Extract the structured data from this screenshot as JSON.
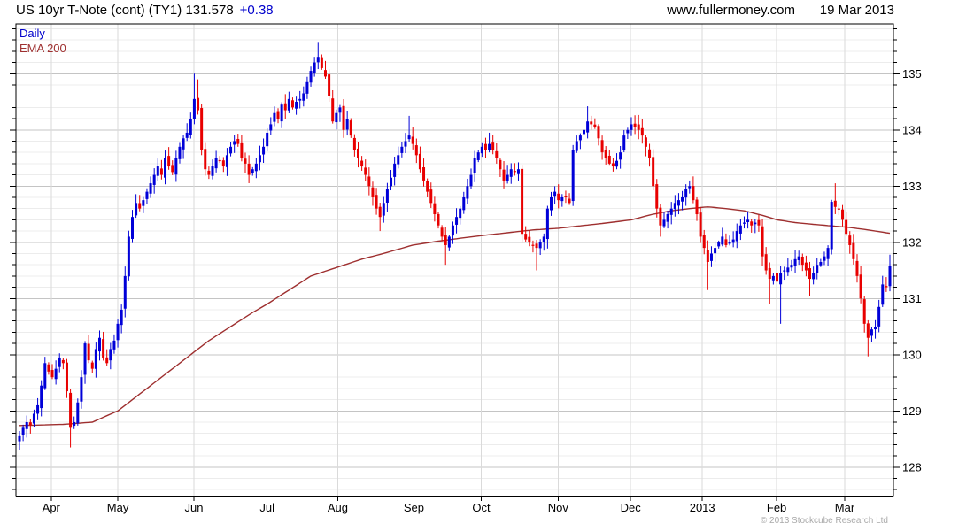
{
  "header": {
    "title": "US 10yr T-Note (cont) (TY1) 131.578",
    "change": "+0.38",
    "watermark": "www.fullermoney.com",
    "date": "19 Mar 2013"
  },
  "legend": {
    "timeframe": {
      "label": "Daily",
      "color": "#0000cc"
    },
    "overlay": {
      "label": "EMA 200",
      "color": "#9e2f2f"
    }
  },
  "footer": {
    "copyright": "© 2013 Stockcube Research Ltd"
  },
  "chart_data": {
    "type": "candlestick",
    "title": "US 10yr T-Note (cont) (TY1)",
    "last_price": 131.578,
    "change": 0.38,
    "timeframe": "Daily",
    "overlay": "EMA 200",
    "ylim": [
      127.477,
      135.886
    ],
    "y_ticks": [
      128,
      129,
      130,
      131,
      132,
      133,
      134,
      135
    ],
    "y_minor_step": 0.2,
    "grid": true,
    "legend_position": "top-left",
    "months": [
      {
        "label": "Apr",
        "day": 8.7
      },
      {
        "label": "May",
        "day": 27.0
      },
      {
        "label": "Jun",
        "day": 47.9
      },
      {
        "label": "Jul",
        "day": 68.0
      },
      {
        "label": "Aug",
        "day": 87.4
      },
      {
        "label": "Sep",
        "day": 108.3
      },
      {
        "label": "Oct",
        "day": 126.8
      },
      {
        "label": "Nov",
        "day": 147.9
      },
      {
        "label": "Dec",
        "day": 167.8
      },
      {
        "label": "2013",
        "day": 187.5
      },
      {
        "label": "Feb",
        "day": 207.9
      },
      {
        "label": "Mar",
        "day": 226.6
      }
    ],
    "closes": [
      128.55,
      128.7,
      128.8,
      128.75,
      128.95,
      129.1,
      129.45,
      129.85,
      129.7,
      129.6,
      129.75,
      129.95,
      129.85,
      129.35,
      128.7,
      128.8,
      129.15,
      129.6,
      130.2,
      129.9,
      129.75,
      130.1,
      130.3,
      129.95,
      129.85,
      130.1,
      130.25,
      130.55,
      130.8,
      131.4,
      132.1,
      132.45,
      132.7,
      132.6,
      132.75,
      132.9,
      133.05,
      133.2,
      133.35,
      133.2,
      133.5,
      133.35,
      133.25,
      133.5,
      133.7,
      133.85,
      133.95,
      134.2,
      134.55,
      134.35,
      133.65,
      133.3,
      133.2,
      133.35,
      133.5,
      133.45,
      133.35,
      133.55,
      133.7,
      133.8,
      133.75,
      133.5,
      133.4,
      133.2,
      133.3,
      133.4,
      133.55,
      133.7,
      133.95,
      134.1,
      134.3,
      134.2,
      134.45,
      134.35,
      134.55,
      134.4,
      134.5,
      134.55,
      134.65,
      134.85,
      135.05,
      135.2,
      135.3,
      135.1,
      134.95,
      134.6,
      134.15,
      134.3,
      134.4,
      134.0,
      134.2,
      133.9,
      133.65,
      133.5,
      133.35,
      133.2,
      133.0,
      132.8,
      132.6,
      132.45,
      132.7,
      132.95,
      133.15,
      133.4,
      133.55,
      133.7,
      133.8,
      133.9,
      133.75,
      133.55,
      133.3,
      133.1,
      132.9,
      132.7,
      132.5,
      132.3,
      132.1,
      131.95,
      132.1,
      132.3,
      132.45,
      132.6,
      132.8,
      133.0,
      133.2,
      133.5,
      133.6,
      133.7,
      133.65,
      133.75,
      133.65,
      133.5,
      133.3,
      133.1,
      133.2,
      133.3,
      133.25,
      133.3,
      132.15,
      132.05,
      132.0,
      131.95,
      131.9,
      132.0,
      132.1,
      132.6,
      132.8,
      132.9,
      132.75,
      132.8,
      132.8,
      132.7,
      133.65,
      133.8,
      133.9,
      134.0,
      134.15,
      134.1,
      134.05,
      133.85,
      133.6,
      133.5,
      133.4,
      133.35,
      133.45,
      133.6,
      133.9,
      134.0,
      134.1,
      134.05,
      134.0,
      133.9,
      133.7,
      133.5,
      133.0,
      132.6,
      132.3,
      132.4,
      132.5,
      132.6,
      132.7,
      132.75,
      132.8,
      132.95,
      133.0,
      132.75,
      132.5,
      132.1,
      131.9,
      131.65,
      131.8,
      131.9,
      132.0,
      132.1,
      131.95,
      132.0,
      132.05,
      132.2,
      132.3,
      132.35,
      132.4,
      132.3,
      132.35,
      132.3,
      131.75,
      131.5,
      131.35,
      131.4,
      131.3,
      131.45,
      131.5,
      131.55,
      131.6,
      131.7,
      131.75,
      131.6,
      131.5,
      131.35,
      131.45,
      131.6,
      131.65,
      131.75,
      131.9,
      132.72,
      132.63,
      132.6,
      132.4,
      132.15,
      131.95,
      131.7,
      131.4,
      131.0,
      130.55,
      130.3,
      130.45,
      130.5,
      130.85,
      131.25,
      131.2,
      131.578
    ],
    "wick_overrides": {
      "0": {
        "lo": 128.3
      },
      "14": {
        "lo": 128.35
      },
      "48": {
        "hi": 135.0
      },
      "49": {
        "hi": 134.9
      },
      "82": {
        "hi": 135.55
      },
      "99": {
        "lo": 132.2
      },
      "107": {
        "hi": 134.25
      },
      "117": {
        "lo": 131.6
      },
      "129": {
        "hi": 133.95
      },
      "142": {
        "lo": 131.5
      },
      "156": {
        "hi": 134.42
      },
      "176": {
        "lo": 132.1
      },
      "184": {
        "hi": 133.1
      },
      "189": {
        "lo": 131.15
      },
      "200": {
        "hi": 132.55
      },
      "206": {
        "lo": 130.9
      },
      "209": {
        "lo": 130.55
      },
      "217": {
        "lo": 131.05
      },
      "224": {
        "hi": 133.05
      },
      "233": {
        "lo": 129.97
      },
      "239": {
        "hi": 131.78
      }
    },
    "ema_anchors": [
      [
        0,
        128.74
      ],
      [
        12,
        128.76
      ],
      [
        20,
        128.8
      ],
      [
        27,
        129.0
      ],
      [
        34,
        129.35
      ],
      [
        40,
        129.65
      ],
      [
        44,
        129.85
      ],
      [
        48,
        130.05
      ],
      [
        52,
        130.25
      ],
      [
        58,
        130.5
      ],
      [
        64,
        130.75
      ],
      [
        68,
        130.9
      ],
      [
        74,
        131.15
      ],
      [
        80,
        131.4
      ],
      [
        87,
        131.55
      ],
      [
        94,
        131.7
      ],
      [
        101,
        131.82
      ],
      [
        108,
        131.95
      ],
      [
        115,
        132.02
      ],
      [
        122,
        132.08
      ],
      [
        127,
        132.12
      ],
      [
        134,
        132.17
      ],
      [
        141,
        132.22
      ],
      [
        148,
        132.25
      ],
      [
        155,
        132.3
      ],
      [
        162,
        132.35
      ],
      [
        168,
        132.4
      ],
      [
        174,
        132.5
      ],
      [
        179,
        132.56
      ],
      [
        184,
        132.6
      ],
      [
        189,
        132.63
      ],
      [
        194,
        132.6
      ],
      [
        199,
        132.56
      ],
      [
        204,
        132.48
      ],
      [
        208,
        132.4
      ],
      [
        213,
        132.35
      ],
      [
        218,
        132.32
      ],
      [
        227,
        132.27
      ],
      [
        232,
        132.23
      ],
      [
        236,
        132.19
      ],
      [
        239,
        132.16
      ]
    ],
    "colors": {
      "up": "#0000d8",
      "down": "#e80000",
      "ema": "#9e2f2f",
      "grid_major": "#c4c4c4",
      "grid_minor": "#ececec",
      "grid_vertical": "#dadada",
      "axis": "#000000",
      "label": "#000000"
    },
    "seed": 42
  }
}
